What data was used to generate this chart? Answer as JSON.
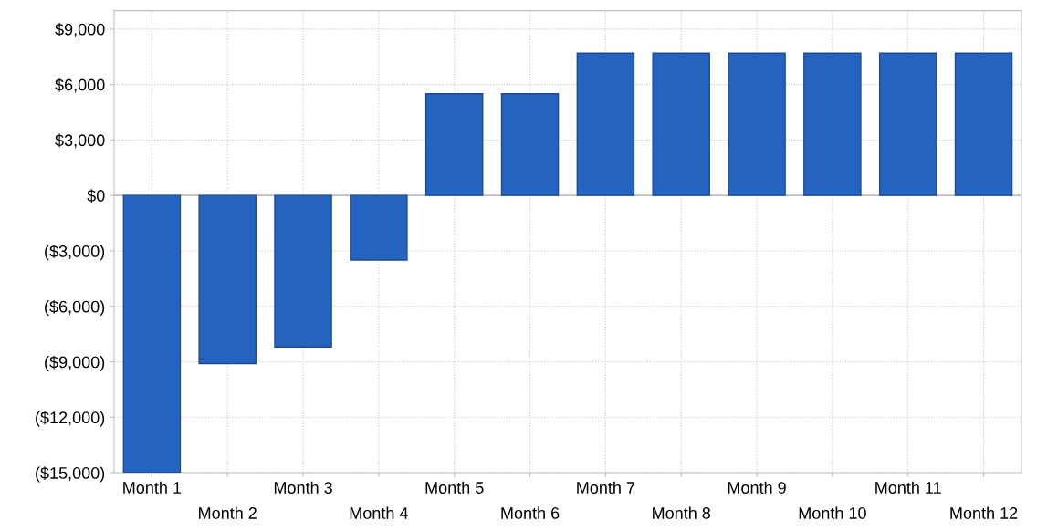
{
  "chart_data": {
    "type": "bar",
    "categories": [
      "Month 1",
      "Month 2",
      "Month 3",
      "Month 4",
      "Month 5",
      "Month 6",
      "Month 7",
      "Month 8",
      "Month 9",
      "Month 10",
      "Month 11",
      "Month 12"
    ],
    "values": [
      -15000,
      -9100,
      -8200,
      -3500,
      5500,
      5500,
      7700,
      7700,
      7700,
      7700,
      7700,
      7700
    ],
    "color": "#2563c0",
    "ylim": [
      -15000,
      10000
    ],
    "yticks": [
      {
        "value": -15000,
        "label": "($15,000)"
      },
      {
        "value": -12000,
        "label": "($12,000)"
      },
      {
        "value": -9000,
        "label": "($9,000)"
      },
      {
        "value": -6000,
        "label": "($6,000)"
      },
      {
        "value": -3000,
        "label": "($3,000)"
      },
      {
        "value": 0,
        "label": "$0"
      },
      {
        "value": 3000,
        "label": "$3,000"
      },
      {
        "value": 6000,
        "label": "$6,000"
      },
      {
        "value": 9000,
        "label": "$9,000"
      }
    ],
    "grid": true
  }
}
